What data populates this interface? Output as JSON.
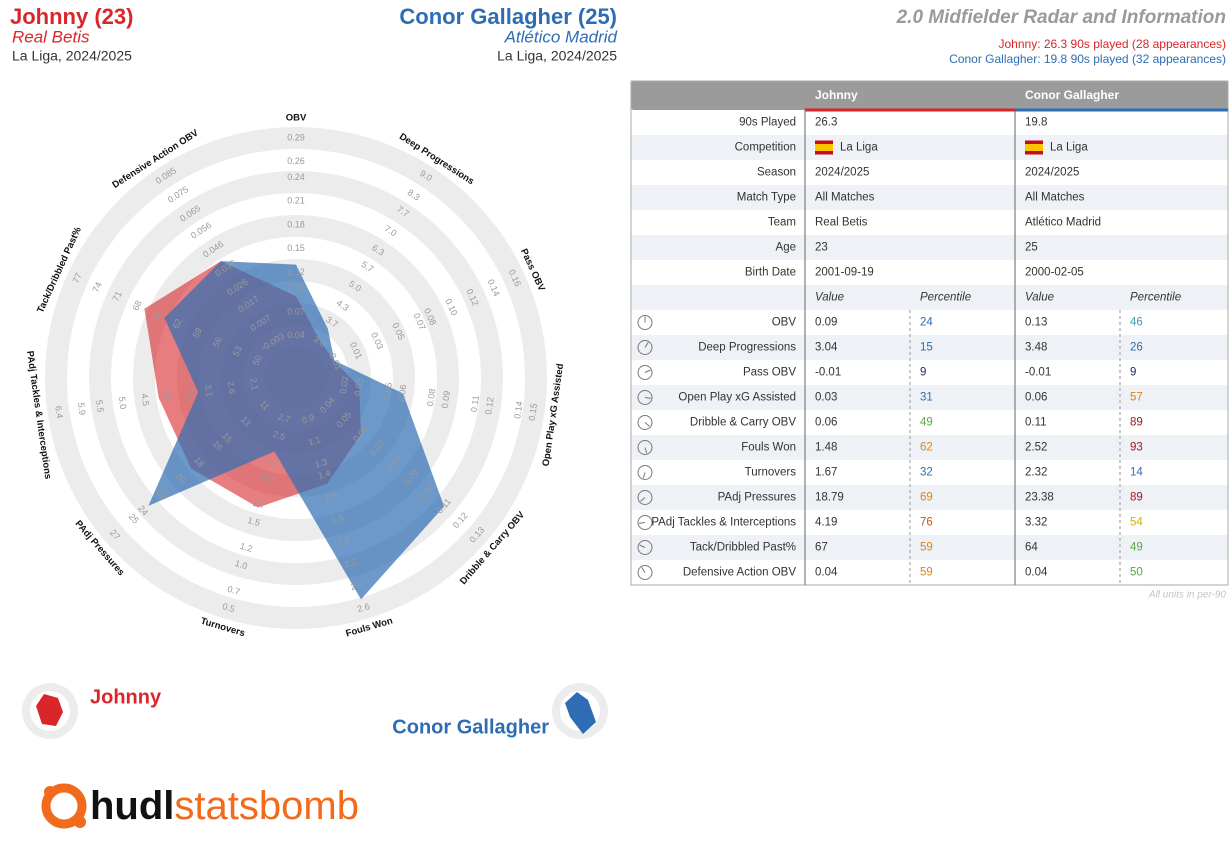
{
  "header": {
    "players": [
      {
        "title": "Johnny (23)",
        "team": "Real Betis",
        "competition": "La Liga, 2024/2025"
      },
      {
        "title": "Conor Gallagher (25)",
        "team": "Atlético Madrid",
        "competition": "La Liga, 2024/2025"
      }
    ],
    "title": "2.0 Midfielder Radar and Information",
    "notes": [
      "Johnny: 26.3 90s played (28 appearances)",
      "Conor Gallagher: 19.8 90s played (32 appearances)"
    ]
  },
  "chart_data": {
    "type": "radar",
    "axes": [
      {
        "name": "OBV",
        "lim": [
          0.012,
          0.29
        ],
        "ticks": [
          0.04,
          0.07,
          {
            "value": 0.1,
            "label": "0.10"
          },
          0.12,
          0.15,
          0.18,
          0.21,
          0.24,
          0.26,
          0.29
        ]
      },
      {
        "name": "Deep Progressions",
        "lim": [
          2.3,
          9
        ],
        "ticks": [
          {
            "value": 3,
            "label": "3.0"
          },
          3.7,
          4.3,
          {
            "value": 5,
            "label": "5.0"
          },
          5.7,
          6.3,
          {
            "value": 7,
            "label": "7.0"
          },
          7.7,
          8.3,
          {
            "value": 9,
            "label": "9.0"
          }
        ]
      },
      {
        "name": "Pass OBV",
        "lim": [
          -0.029,
          0.16
        ],
        "ticks": [
          -0.01,
          0.01,
          0.03,
          0.05,
          0.07,
          0.08,
          {
            "value": 0.1,
            "label": "0.10"
          },
          0.12,
          0.14,
          0.16
        ]
      },
      {
        "name": "Open Play xG Assisted",
        "lim": [
          0,
          0.15
        ],
        "ticks": [
          0.02,
          0.03,
          0.05,
          0.06,
          0.08,
          0.09,
          0.11,
          0.12,
          0.14,
          0.15
        ]
      },
      {
        "name": "Dribble & Carry OBV",
        "lim": [
          0.03,
          0.13
        ],
        "ticks": [
          0.04,
          0.05,
          0.06,
          0.07,
          0.08,
          0.09,
          {
            "value": 0.1,
            "label": "0.10"
          },
          0.11,
          0.12,
          0.13
        ]
      },
      {
        "name": "Fouls Won",
        "lim": [
          0.7,
          2.6
        ],
        "ticks": [
          0.9,
          1.1,
          1.3,
          1.4,
          1.6,
          1.8,
          {
            "value": 2,
            "label": "2.0"
          },
          2.2,
          2.4,
          2.6
        ]
      },
      {
        "name": "Turnovers",
        "lim": [
          2.95,
          0.5
        ],
        "ticks": [
          2.7,
          2.5,
          2.2,
          {
            "value": 2,
            "label": "2.0"
          },
          1.7,
          1.5,
          1.2,
          {
            "value": 1,
            "label": "1.0"
          },
          0.7,
          0.5
        ]
      },
      {
        "name": "PAdj Pressures",
        "lim": [
          9.2,
          27
        ],
        "ticks": [
          11,
          13,
          15,
          16,
          18,
          20,
          22,
          24,
          25,
          27
        ]
      },
      {
        "name": "PAdj Tackles & Interceptions",
        "lim": [
          1.6,
          6.4
        ],
        "ticks": [
          2.1,
          2.6,
          3.1,
          3.5,
          {
            "value": 4,
            "label": "4.0"
          },
          4.5,
          {
            "value": 5,
            "label": "5.0"
          },
          5.5,
          5.9,
          6.4
        ]
      },
      {
        "name": "Tack/Dribbled Past%",
        "lim": [
          47,
          77
        ],
        "ticks": [
          50,
          53,
          56,
          59,
          62,
          65,
          68,
          71,
          74,
          77
        ]
      },
      {
        "name": "Defensive Action OBV",
        "lim": [
          -0.013,
          0.085
        ],
        "ticks": [
          -0.003,
          0.007,
          0.017,
          0.026,
          0.036,
          0.046,
          0.056,
          0.065,
          0.075,
          0.085
        ]
      }
    ],
    "series": [
      {
        "name": "Johnny",
        "color": "#d9262b",
        "values": [
          0.09,
          3.04,
          -0.01,
          0.03,
          0.06,
          1.48,
          1.67,
          18.79,
          4.19,
          67,
          0.04
        ],
        "percentiles": [
          24,
          15,
          9,
          31,
          49,
          62,
          32,
          69,
          76,
          59,
          59
        ]
      },
      {
        "name": "Conor Gallagher",
        "color": "#2e6db4",
        "values": [
          0.13,
          3.48,
          -0.01,
          0.06,
          0.11,
          2.52,
          2.32,
          23.38,
          3.32,
          64,
          0.04
        ],
        "percentiles": [
          46,
          26,
          9,
          57,
          89,
          93,
          14,
          89,
          54,
          49,
          50
        ]
      }
    ]
  },
  "table": {
    "info": [
      {
        "label": "90s Played",
        "values": [
          26.3,
          19.8
        ]
      },
      {
        "label": "Competition",
        "values": [
          "La Liga",
          "La Liga"
        ]
      },
      {
        "label": "Season",
        "values": [
          "2024/2025",
          "2024/2025"
        ]
      },
      {
        "label": "Match Type",
        "values": [
          "All Matches",
          "All Matches"
        ]
      },
      {
        "label": "Team",
        "values": [
          "Real Betis",
          "Atlético Madrid"
        ]
      },
      {
        "label": "Age",
        "values": [
          23,
          25
        ]
      },
      {
        "label": "Birth Date",
        "values": [
          "2001-09-19",
          "2000-02-05"
        ]
      }
    ],
    "subheader": [
      "Value",
      "Percentile"
    ],
    "footnote": "All units in per-90"
  },
  "logo": {
    "brand": "hudl",
    "product": "statsbomb"
  }
}
